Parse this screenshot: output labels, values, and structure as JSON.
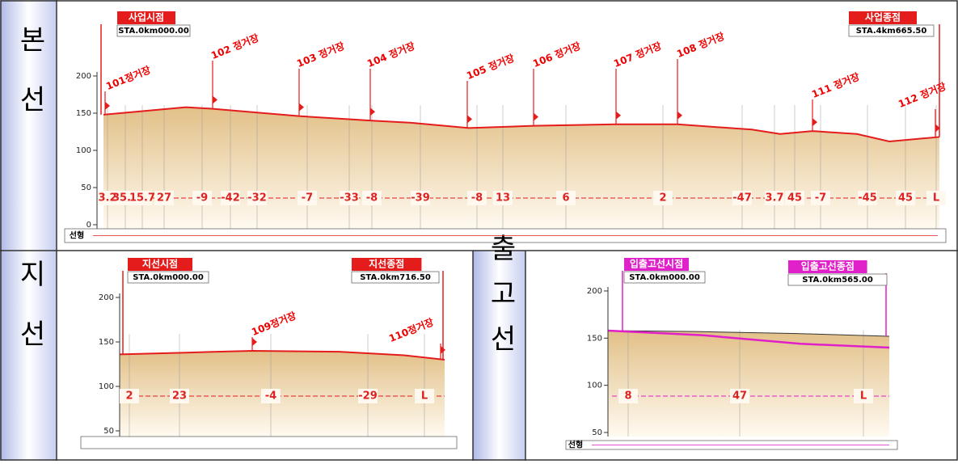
{
  "main": {
    "header": "본선",
    "start": {
      "label": "사업시점",
      "sta": "STA.0km000.00"
    },
    "end": {
      "label": "사업종점",
      "sta": "STA.4km665.50"
    },
    "stations": [
      "101정거장",
      "102 정거장",
      "103 정거장",
      "104 정거장",
      "105 정거장",
      "106 정거장",
      "107 정거장",
      "108 정거장",
      "111 정거장",
      "112 정거장"
    ],
    "yticks": [
      200,
      150,
      100,
      50,
      0
    ],
    "gradients": [
      "3.2",
      "35.7",
      "15.7",
      "27",
      "-9",
      "-42",
      "-32",
      "-7",
      "-33",
      "-8",
      "-39",
      "-8",
      "13",
      "6",
      "2",
      "-47",
      "3.7",
      "45",
      "-7",
      "-45",
      "45",
      "L"
    ],
    "alignment": "선형"
  },
  "branch": {
    "header": "지선",
    "start": {
      "label": "지선시점",
      "sta": "STA.0km000.00"
    },
    "end": {
      "label": "지선종점",
      "sta": "STA.0km716.50"
    },
    "stations": [
      "109정거장",
      "110정거장"
    ],
    "yticks": [
      200,
      150,
      100,
      50
    ],
    "gradients": [
      "2",
      "23",
      "-4",
      "-29",
      "L"
    ]
  },
  "depot": {
    "header": "입출고선",
    "start": {
      "label": "입출고선시점",
      "sta": "STA.0km000.00"
    },
    "end": {
      "label": "입출고선종점",
      "sta": "STA.0km565.00"
    },
    "yticks": [
      200,
      150,
      100,
      50
    ],
    "gradients": [
      "8",
      "47",
      "L"
    ],
    "alignment": "선형"
  }
}
